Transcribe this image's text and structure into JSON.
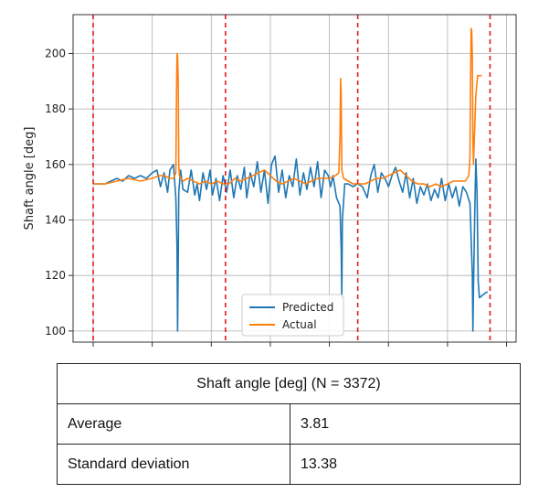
{
  "chart_data": {
    "type": "line",
    "ylabel": "Shaft angle [deg]",
    "xlabel": "",
    "xlim": [
      0,
      3372
    ],
    "ylim": [
      96,
      214
    ],
    "yticks": [
      100,
      120,
      140,
      160,
      180,
      200
    ],
    "xticks": [
      0,
      500,
      1000,
      1500,
      2000,
      2500,
      3000,
      3500
    ],
    "grid": true,
    "legend_position": "bottom-center",
    "change_points": [
      0,
      1120,
      2240,
      3360
    ],
    "change_point_color": "#e41a1c",
    "series": [
      {
        "name": "Predicted",
        "color": "#1f77b4",
        "points": [
          [
            0,
            153
          ],
          [
            50,
            153
          ],
          [
            100,
            153
          ],
          [
            150,
            154
          ],
          [
            200,
            155
          ],
          [
            250,
            154
          ],
          [
            300,
            156
          ],
          [
            350,
            155
          ],
          [
            400,
            156
          ],
          [
            450,
            155
          ],
          [
            500,
            157
          ],
          [
            540,
            158
          ],
          [
            570,
            152
          ],
          [
            600,
            157
          ],
          [
            630,
            150
          ],
          [
            650,
            158
          ],
          [
            680,
            160
          ],
          [
            700,
            148
          ],
          [
            710,
            130
          ],
          [
            715,
            100
          ],
          [
            720,
            124
          ],
          [
            725,
            150
          ],
          [
            740,
            158
          ],
          [
            760,
            151
          ],
          [
            800,
            150
          ],
          [
            830,
            158
          ],
          [
            860,
            149
          ],
          [
            880,
            153
          ],
          [
            900,
            147
          ],
          [
            930,
            157
          ],
          [
            960,
            151
          ],
          [
            990,
            158
          ],
          [
            1010,
            149
          ],
          [
            1040,
            155
          ],
          [
            1070,
            147
          ],
          [
            1100,
            156
          ],
          [
            1130,
            150
          ],
          [
            1160,
            158
          ],
          [
            1190,
            148
          ],
          [
            1220,
            156
          ],
          [
            1250,
            151
          ],
          [
            1280,
            159
          ],
          [
            1300,
            148
          ],
          [
            1330,
            157
          ],
          [
            1360,
            152
          ],
          [
            1390,
            161
          ],
          [
            1420,
            150
          ],
          [
            1450,
            158
          ],
          [
            1480,
            146
          ],
          [
            1510,
            160
          ],
          [
            1540,
            163
          ],
          [
            1570,
            150
          ],
          [
            1600,
            158
          ],
          [
            1630,
            148
          ],
          [
            1660,
            156
          ],
          [
            1690,
            152
          ],
          [
            1720,
            162
          ],
          [
            1750,
            149
          ],
          [
            1780,
            157
          ],
          [
            1810,
            151
          ],
          [
            1840,
            159
          ],
          [
            1870,
            152
          ],
          [
            1900,
            161
          ],
          [
            1930,
            148
          ],
          [
            1960,
            158
          ],
          [
            1990,
            156
          ],
          [
            2010,
            152
          ],
          [
            2030,
            156
          ],
          [
            2060,
            148
          ],
          [
            2090,
            145
          ],
          [
            2100,
            130
          ],
          [
            2105,
            112
          ],
          [
            2110,
            140
          ],
          [
            2130,
            153
          ],
          [
            2160,
            153
          ],
          [
            2200,
            152
          ],
          [
            2240,
            153
          ],
          [
            2280,
            152
          ],
          [
            2320,
            148
          ],
          [
            2350,
            156
          ],
          [
            2380,
            160
          ],
          [
            2410,
            150
          ],
          [
            2440,
            157
          ],
          [
            2470,
            155
          ],
          [
            2500,
            152
          ],
          [
            2530,
            156
          ],
          [
            2560,
            159
          ],
          [
            2590,
            154
          ],
          [
            2620,
            150
          ],
          [
            2650,
            157
          ],
          [
            2680,
            148
          ],
          [
            2710,
            155
          ],
          [
            2740,
            146
          ],
          [
            2770,
            152
          ],
          [
            2800,
            149
          ],
          [
            2830,
            153
          ],
          [
            2860,
            147
          ],
          [
            2890,
            151
          ],
          [
            2920,
            148
          ],
          [
            2950,
            155
          ],
          [
            2980,
            147
          ],
          [
            3010,
            153
          ],
          [
            3040,
            148
          ],
          [
            3070,
            152
          ],
          [
            3100,
            145
          ],
          [
            3130,
            152
          ],
          [
            3160,
            150
          ],
          [
            3190,
            146
          ],
          [
            3210,
            120
          ],
          [
            3215,
            100
          ],
          [
            3220,
            115
          ],
          [
            3230,
            140
          ],
          [
            3240,
            162
          ],
          [
            3250,
            150
          ],
          [
            3260,
            118
          ],
          [
            3270,
            112
          ],
          [
            3300,
            113
          ],
          [
            3330,
            114
          ],
          [
            3340,
            114
          ]
        ]
      },
      {
        "name": "Actual",
        "color": "#ff7f0e",
        "points": [
          [
            0,
            153
          ],
          [
            100,
            153
          ],
          [
            200,
            154
          ],
          [
            300,
            155
          ],
          [
            400,
            154
          ],
          [
            500,
            155
          ],
          [
            560,
            156
          ],
          [
            600,
            156
          ],
          [
            650,
            155
          ],
          [
            680,
            155
          ],
          [
            700,
            157
          ],
          [
            705,
            185
          ],
          [
            710,
            200
          ],
          [
            715,
            199
          ],
          [
            720,
            190
          ],
          [
            725,
            160
          ],
          [
            730,
            156
          ],
          [
            760,
            154
          ],
          [
            800,
            155
          ],
          [
            850,
            154
          ],
          [
            900,
            153
          ],
          [
            950,
            154
          ],
          [
            1000,
            153
          ],
          [
            1050,
            154
          ],
          [
            1100,
            153
          ],
          [
            1150,
            153
          ],
          [
            1200,
            155
          ],
          [
            1250,
            154
          ],
          [
            1300,
            155
          ],
          [
            1350,
            156
          ],
          [
            1400,
            157
          ],
          [
            1450,
            158
          ],
          [
            1500,
            156
          ],
          [
            1550,
            154
          ],
          [
            1600,
            153
          ],
          [
            1650,
            154
          ],
          [
            1700,
            155
          ],
          [
            1750,
            154
          ],
          [
            1800,
            153
          ],
          [
            1850,
            154
          ],
          [
            1900,
            155
          ],
          [
            1950,
            155
          ],
          [
            2000,
            155
          ],
          [
            2050,
            156
          ],
          [
            2080,
            157
          ],
          [
            2090,
            170
          ],
          [
            2095,
            191
          ],
          [
            2100,
            185
          ],
          [
            2105,
            158
          ],
          [
            2120,
            155
          ],
          [
            2160,
            154
          ],
          [
            2200,
            153
          ],
          [
            2250,
            153
          ],
          [
            2300,
            153
          ],
          [
            2350,
            154
          ],
          [
            2400,
            155
          ],
          [
            2450,
            155
          ],
          [
            2500,
            156
          ],
          [
            2550,
            157
          ],
          [
            2600,
            158
          ],
          [
            2650,
            156
          ],
          [
            2700,
            154
          ],
          [
            2750,
            153
          ],
          [
            2800,
            153
          ],
          [
            2850,
            152
          ],
          [
            2900,
            153
          ],
          [
            2950,
            152
          ],
          [
            3000,
            153
          ],
          [
            3050,
            154
          ],
          [
            3100,
            154
          ],
          [
            3150,
            154
          ],
          [
            3180,
            156
          ],
          [
            3190,
            163
          ],
          [
            3195,
            190
          ],
          [
            3200,
            209
          ],
          [
            3205,
            208
          ],
          [
            3210,
            198
          ],
          [
            3215,
            170
          ],
          [
            3220,
            160
          ],
          [
            3240,
            185
          ],
          [
            3255,
            192
          ],
          [
            3290,
            192
          ]
        ]
      }
    ]
  },
  "stats_table": {
    "title": "Shaft angle [deg] (N = 3372)",
    "rows": [
      {
        "label": "Average",
        "value": "3.81"
      },
      {
        "label": "Standard deviation",
        "value": "13.38"
      }
    ]
  }
}
